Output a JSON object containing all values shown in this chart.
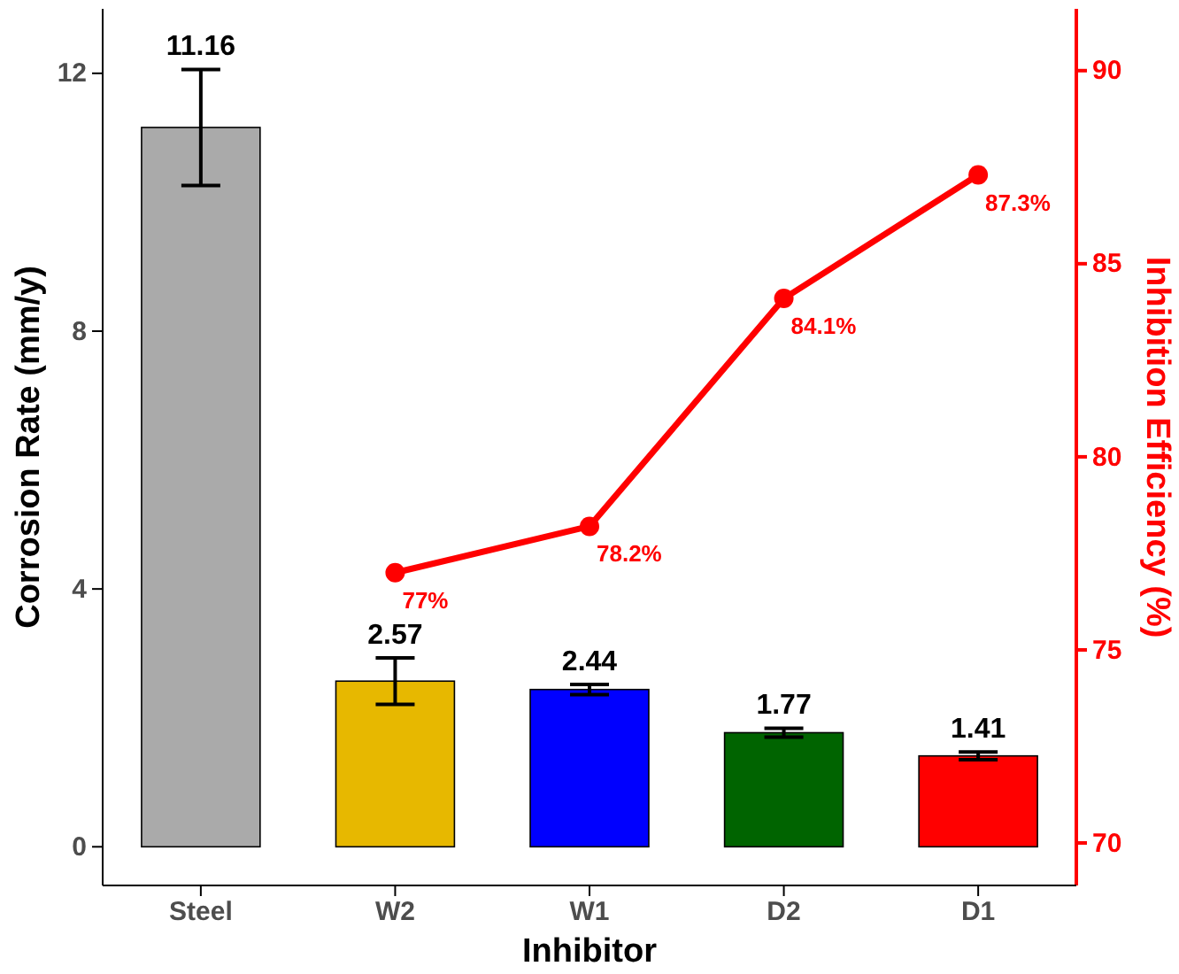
{
  "chart_data": {
    "type": "bar",
    "xlabel": "Inhibitor",
    "ylabel": "Corrosion Rate (mm/y)",
    "y2label": "Inhibition Efficiency (%)",
    "categories": [
      "Steel",
      "W2",
      "W1",
      "D2",
      "D1"
    ],
    "series": [
      {
        "colors": [
          "#aaaaaa",
          "#e7b800",
          "#0000ff",
          "#006400",
          "#ff0000"
        ],
        "values": [
          11.16,
          2.57,
          2.44,
          1.77,
          1.41
        ],
        "errors": [
          0.9,
          0.36,
          0.08,
          0.07,
          0.06
        ],
        "value_labels": [
          "11.16",
          "2.57",
          "2.44",
          "1.77",
          "1.41"
        ]
      },
      {
        "type": "line",
        "axis": "y2",
        "color": "#ff0000",
        "values": [
          null,
          77,
          78.2,
          84.1,
          87.3
        ],
        "value_labels": [
          null,
          "77%",
          "78.2%",
          "84.1%",
          "87.3%"
        ]
      }
    ],
    "ylim": [
      -0.6,
      13.0
    ],
    "yticks": [
      0,
      4,
      8,
      12
    ],
    "y2lim": [
      68.9,
      91.6
    ],
    "y2ticks": [
      70,
      75,
      80,
      85,
      90
    ],
    "grid": false,
    "marker": "circle",
    "line_style": "solid"
  }
}
